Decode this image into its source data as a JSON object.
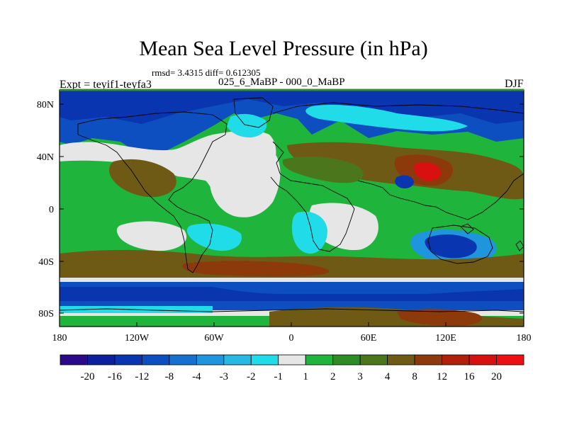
{
  "title": "Mean Sea Level Pressure (in hPa)",
  "stats": {
    "text": "rmsd= 3.4315 diff= 0.612305"
  },
  "experiment": "Expt = teyif1-teyfa3",
  "period": "025_6_MaBP - 000_0_MaBP",
  "season": "DJF",
  "lat_labels": [
    "80N",
    "40N",
    "0",
    "40S",
    "80S"
  ],
  "lon_labels": [
    "180",
    "120W",
    "60W",
    "0",
    "60E",
    "120E",
    "180"
  ],
  "colorbar": {
    "levels": [
      "-20",
      "-16",
      "-12",
      "-8",
      "-4",
      "-3",
      "-2",
      "-1",
      "1",
      "2",
      "3",
      "4",
      "8",
      "12",
      "16",
      "20"
    ],
    "colors": [
      "#2a0a8a",
      "#0d1f9c",
      "#0a35b0",
      "#0d4fc0",
      "#1670d0",
      "#1e95dc",
      "#28b8e4",
      "#20dce8",
      "#e6e6e6",
      "#1fb53c",
      "#2e8c24",
      "#4c761c",
      "#6e5a14",
      "#8c3a0c",
      "#b0200a",
      "#d81010",
      "#ee1010"
    ]
  },
  "map_colors": {
    "ocean_default": "#1fb53c",
    "near_zero": "#e6e6e6",
    "light_blue": "#20dce8",
    "mid_blue": "#1e95dc",
    "blue": "#0d4fc0",
    "dark_blue": "#0a35b0",
    "olive": "#4c761c",
    "brown": "#6e5a14",
    "dark_brown": "#8c3a0c",
    "red": "#d81010"
  }
}
